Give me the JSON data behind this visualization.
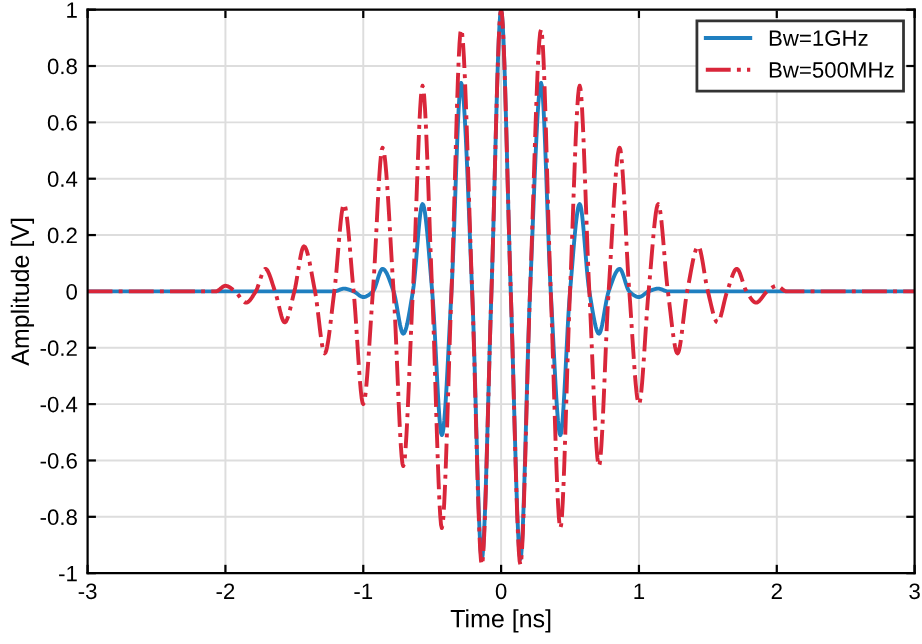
{
  "chart_data": {
    "type": "line",
    "xlabel": "Time [ns]",
    "ylabel": "Amplitude [V]",
    "x": [
      -3,
      -2.5,
      -2.07,
      -2.0,
      -1.93,
      -1.85,
      -1.78,
      -1.71,
      -1.64,
      -1.57,
      -1.5,
      -1.43,
      -1.35,
      -1.28,
      -1.21,
      -1.14,
      -1.07,
      -1.0,
      -0.93,
      -0.86,
      -0.78,
      -0.71,
      -0.64,
      -0.57,
      -0.5,
      -0.43,
      -0.36,
      -0.29,
      -0.21,
      -0.14,
      -0.07,
      0,
      0.07,
      0.14,
      0.21,
      0.29,
      0.36,
      0.43,
      0.5,
      0.57,
      0.64,
      0.71,
      0.78,
      0.86,
      0.93,
      1.0,
      1.07,
      1.14,
      1.21,
      1.28,
      1.35,
      1.43,
      1.5,
      1.57,
      1.64,
      1.71,
      1.78,
      1.85,
      1.93,
      2.0,
      2.07,
      2.5,
      3
    ],
    "series": [
      {
        "name": "Bw=1GHz",
        "color": "#1f7fc0",
        "line_style": "solid",
        "values": [
          0,
          0,
          0,
          0,
          0,
          0,
          0,
          0,
          0,
          0,
          0,
          0,
          0,
          0,
          0,
          0.01,
          0,
          -0.02,
          0,
          0.08,
          0,
          -0.15,
          0,
          0.31,
          0,
          -0.51,
          0,
          0.74,
          0,
          -0.95,
          0,
          1,
          0,
          -0.95,
          0,
          0.74,
          0,
          -0.51,
          0,
          0.31,
          0,
          -0.15,
          0,
          0.08,
          0,
          -0.02,
          0,
          0.01,
          0,
          0,
          0,
          0,
          0,
          0,
          0,
          0,
          0,
          0,
          0,
          0,
          0,
          0,
          0
        ]
      },
      {
        "name": "Bw=500MHz",
        "color": "#d9263a",
        "line_style": "dashdot",
        "values": [
          0,
          0,
          0,
          0.02,
          0,
          -0.04,
          0,
          0.08,
          0,
          -0.11,
          0,
          0.16,
          0,
          -0.22,
          0,
          0.31,
          0,
          -0.4,
          0,
          0.51,
          0,
          -0.62,
          0,
          0.73,
          0,
          -0.84,
          0,
          0.93,
          0,
          -0.97,
          0,
          1,
          0,
          -0.97,
          0,
          0.93,
          0,
          -0.84,
          0,
          0.73,
          0,
          -0.62,
          0,
          0.51,
          0,
          -0.4,
          0,
          0.31,
          0,
          -0.22,
          0,
          0.16,
          0,
          -0.11,
          0,
          0.08,
          0,
          -0.04,
          0,
          0.02,
          0,
          0,
          0
        ]
      }
    ],
    "xlim": [
      -3,
      3
    ],
    "xticks": [
      -3,
      -2,
      -1,
      0,
      1,
      2,
      3
    ],
    "ylim": [
      -1,
      1
    ],
    "yticks": [
      -1,
      -0.8,
      -0.6,
      -0.4,
      -0.2,
      0,
      0.2,
      0.4,
      0.6,
      0.8,
      1
    ],
    "grid": true,
    "legend": "top right"
  }
}
